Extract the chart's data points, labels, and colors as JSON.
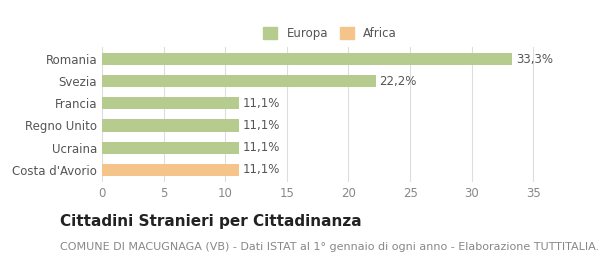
{
  "categories": [
    "Costa d'Avorio",
    "Ucraina",
    "Regno Unito",
    "Francia",
    "Svezia",
    "Romania"
  ],
  "values": [
    11.1,
    11.1,
    11.1,
    11.1,
    22.2,
    33.3
  ],
  "labels": [
    "11,1%",
    "11,1%",
    "11,1%",
    "11,1%",
    "22,2%",
    "33,3%"
  ],
  "bar_colors": [
    "#f5c48a",
    "#b5cc8e",
    "#b5cc8e",
    "#b5cc8e",
    "#b5cc8e",
    "#b5cc8e"
  ],
  "legend_items": [
    {
      "label": "Europa",
      "color": "#b5cc8e"
    },
    {
      "label": "Africa",
      "color": "#f5c48a"
    }
  ],
  "xlim": [
    0,
    37
  ],
  "xticks": [
    0,
    5,
    10,
    15,
    20,
    25,
    30,
    35
  ],
  "title": "Cittadini Stranieri per Cittadinanza",
  "subtitle": "COMUNE DI MACUGNAGA (VB) - Dati ISTAT al 1° gennaio di ogni anno - Elaborazione TUTTITALIA.IT",
  "title_fontsize": 11,
  "subtitle_fontsize": 8,
  "label_fontsize": 8.5,
  "tick_fontsize": 8.5,
  "background_color": "#ffffff",
  "grid_color": "#dddddd",
  "bar_height": 0.55
}
